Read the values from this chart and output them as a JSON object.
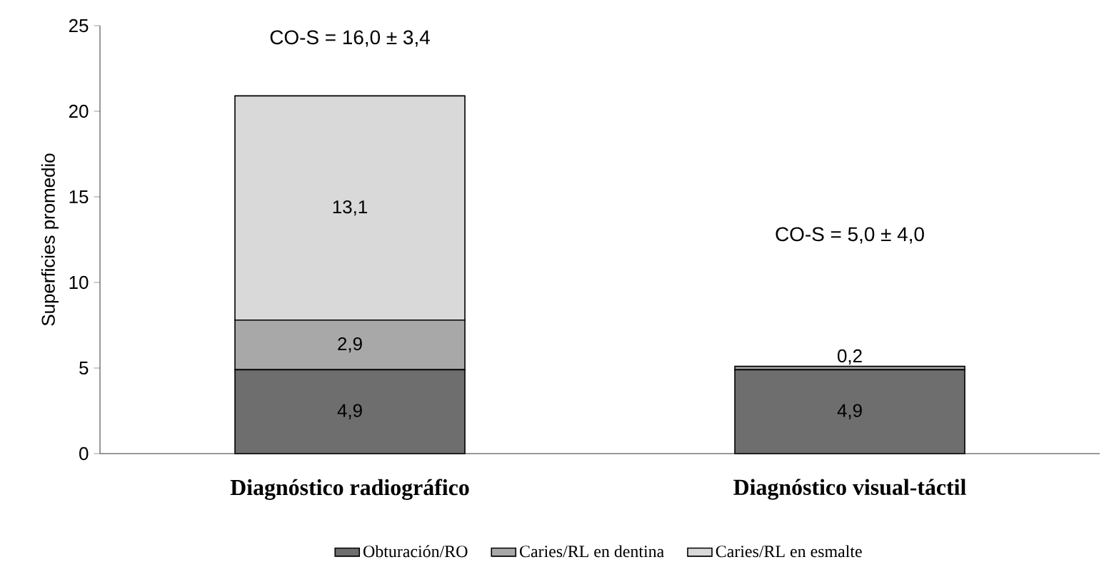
{
  "chart_data": {
    "type": "bar",
    "stacked": true,
    "ylabel": "Superficies promedio",
    "categories": [
      "Diagnóstico radiográfico",
      "Diagnóstico visual-táctil"
    ],
    "series": [
      {
        "name": "Obturación/RO",
        "color": "#6e6e6e",
        "values": [
          4.9,
          4.9
        ],
        "value_labels": [
          "4,9",
          "4,9"
        ]
      },
      {
        "name": "Caries/RL en dentina",
        "color": "#a8a8a8",
        "values": [
          2.9,
          0.2
        ],
        "value_labels": [
          "2,9",
          "0,2"
        ]
      },
      {
        "name": "Caries/RL en esmalte",
        "color": "#d9d9d9",
        "values": [
          13.1,
          null
        ],
        "value_labels": [
          "13,1",
          null
        ]
      }
    ],
    "annotations": [
      "CO-S = 16,0 ± 3,4",
      "CO-S = 5,0 ± 4,0"
    ],
    "ylim": [
      0,
      25
    ],
    "yticks": [
      0,
      5,
      10,
      15,
      20,
      25
    ],
    "legend": "bottom",
    "grid": false
  }
}
